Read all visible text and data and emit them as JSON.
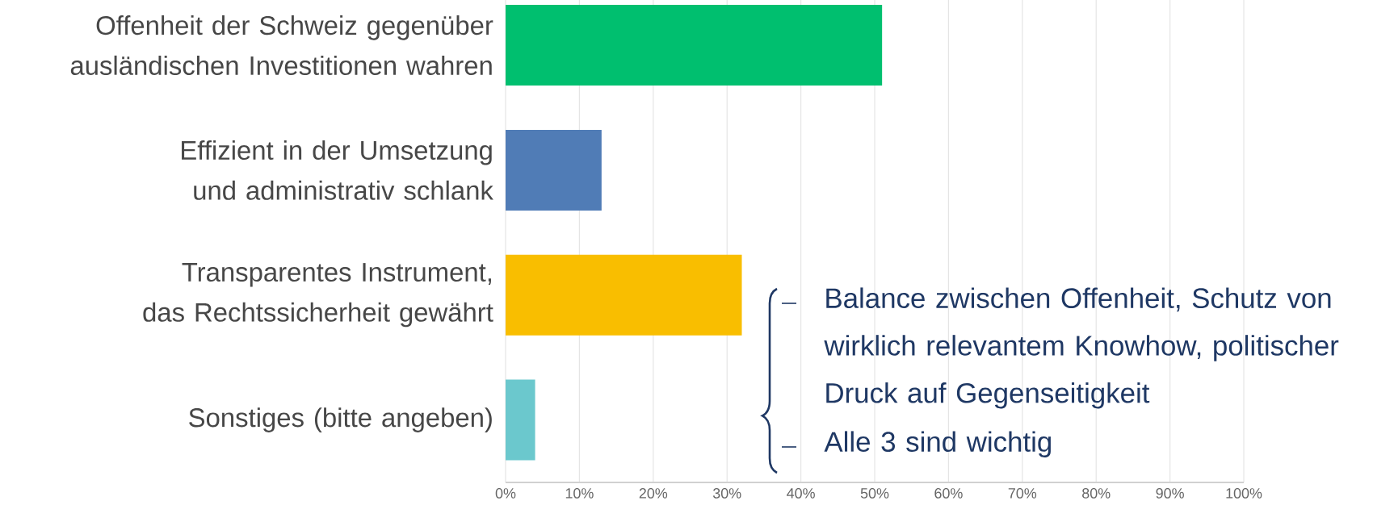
{
  "chart_data": {
    "type": "bar",
    "orientation": "horizontal",
    "categories": [
      "Offenheit der Schweiz gegenüber ausländischen Investitionen wahren",
      "Effizient in der Umsetzung und administrativ schlank",
      "Transparentes Instrument, das Rechtssicherheit gewährt",
      "Sonstiges (bitte angeben)"
    ],
    "values": [
      51,
      13,
      32,
      4
    ],
    "colors": [
      "#00bf6f",
      "#507cb6",
      "#f9be00",
      "#6bc8cd"
    ],
    "xlim": [
      0,
      100
    ],
    "xticks": [
      {
        "value": 0,
        "label": "0%"
      },
      {
        "value": 10,
        "label": "10%"
      },
      {
        "value": 20,
        "label": "20%"
      },
      {
        "value": 30,
        "label": "30%"
      },
      {
        "value": 40,
        "label": "40%"
      },
      {
        "value": 50,
        "label": "50%"
      },
      {
        "value": 60,
        "label": "60%"
      },
      {
        "value": 70,
        "label": "70%"
      },
      {
        "value": 80,
        "label": "80%"
      },
      {
        "value": 90,
        "label": "90%"
      },
      {
        "value": 100,
        "label": "100%"
      }
    ],
    "grid": "x",
    "annotations": [
      "Balance zwischen Offenheit, Schutz von wirklich relevantem Knowhow, politischer Druck auf Gegenseitigkeit",
      "Alle 3 sind wichtig"
    ]
  }
}
